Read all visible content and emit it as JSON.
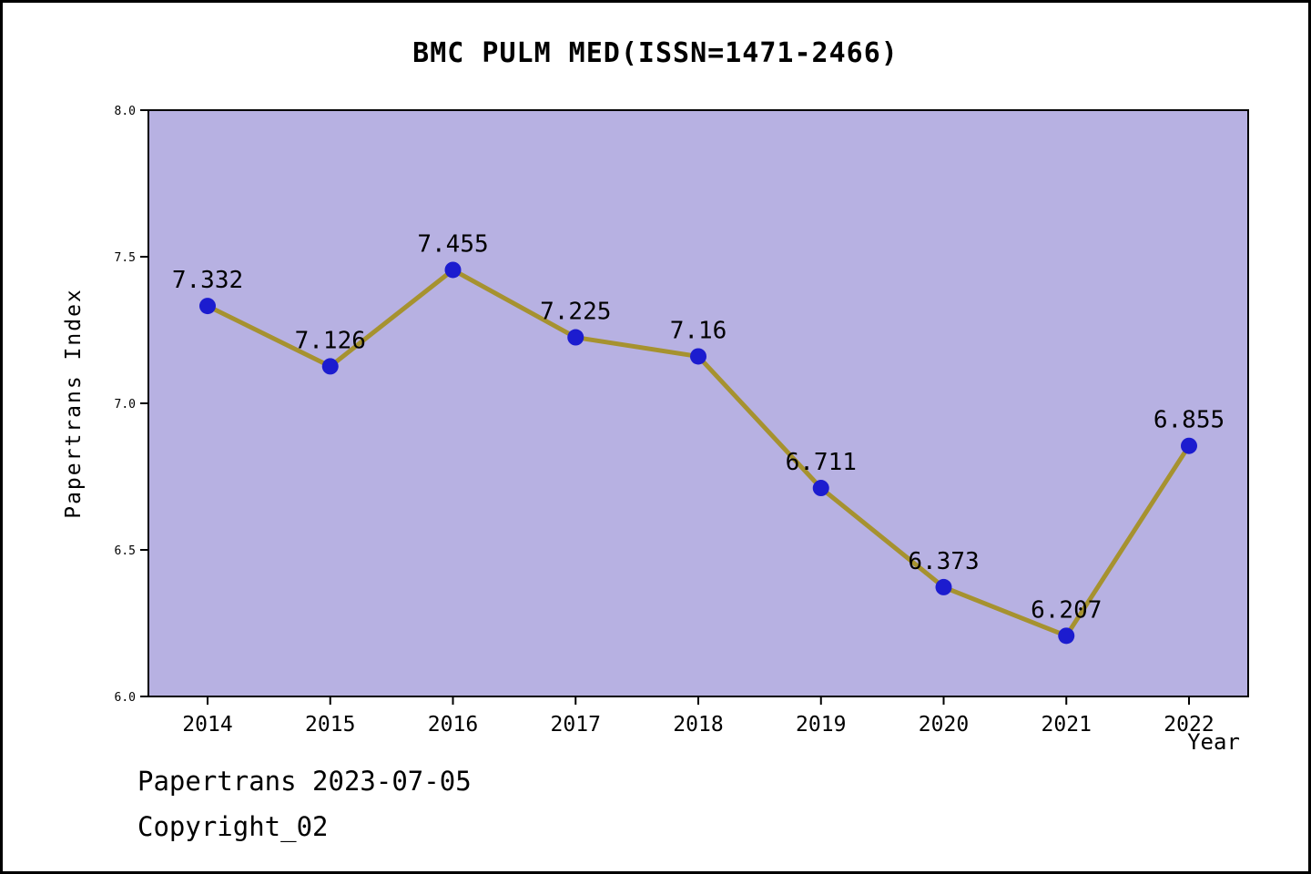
{
  "title": "BMC PULM MED(ISSN=1471-2466)",
  "footer": {
    "line1": "Papertrans 2023-07-05",
    "line2": "Copyright_02"
  },
  "chart_data": {
    "type": "line",
    "title": "BMC PULM MED(ISSN=1471-2466)",
    "xlabel": "Year",
    "ylabel": "Papertrans Index",
    "x": [
      2014,
      2015,
      2016,
      2017,
      2018,
      2019,
      2020,
      2021,
      2022
    ],
    "values": [
      7.332,
      7.126,
      7.455,
      7.225,
      7.16,
      6.711,
      6.373,
      6.207,
      6.855
    ],
    "labels": [
      "7.332",
      "7.126",
      "7.455",
      "7.225",
      "7.16",
      "6.711",
      "6.373",
      "6.207",
      "6.855"
    ],
    "ylim": [
      6.0,
      8.0
    ],
    "yticks": [
      6.0,
      6.5,
      7.0,
      7.5,
      8.0
    ],
    "ytick_labels": [
      "6.0",
      "6.5",
      "7.0",
      "7.5",
      "8.0"
    ],
    "grid": false,
    "legend": "none",
    "colors": {
      "plot_bg": "#b7b1e2",
      "line": "#a6922f",
      "marker": "#1c1ccf",
      "axis": "#000000"
    }
  }
}
